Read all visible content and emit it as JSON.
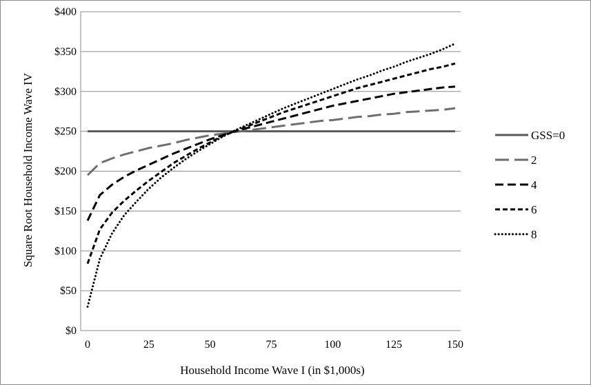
{
  "chart_data": {
    "type": "line",
    "title": "",
    "xlabel": "Household Income Wave I (in $1,000s)",
    "ylabel": "Square Root Household Income Wave IV",
    "xlim": [
      0,
      150
    ],
    "ylim": [
      0,
      400
    ],
    "x_ticks": [
      "0",
      "25",
      "50",
      "75",
      "100",
      "125",
      "150"
    ],
    "y_ticks": [
      "$0",
      "$50",
      "$100",
      "$150",
      "$200",
      "$250",
      "$300",
      "$350",
      "$400"
    ],
    "grid": "horizontal",
    "legend_position": "right",
    "x": [
      0,
      5,
      10,
      15,
      20,
      25,
      30,
      35,
      40,
      45,
      50,
      55,
      60,
      65,
      70,
      75,
      80,
      85,
      90,
      95,
      100,
      105,
      110,
      115,
      120,
      125,
      130,
      135,
      140,
      145,
      150
    ],
    "series": [
      {
        "name": "GSS=0",
        "style": "solid",
        "color": "#595959",
        "values": [
          250,
          250,
          250,
          250,
          250,
          250,
          250,
          250,
          250,
          250,
          250,
          250,
          250,
          250,
          250,
          250,
          250,
          250,
          250,
          250,
          250,
          250,
          250,
          250,
          250,
          250,
          250,
          250,
          250,
          250,
          250
        ]
      },
      {
        "name": "2",
        "style": "long-dash",
        "color": "#6e6e6e",
        "values": [
          195,
          210,
          216,
          221,
          225,
          229,
          232,
          235,
          239,
          242,
          245,
          247,
          249,
          251,
          253,
          255,
          257,
          259,
          261,
          263,
          264,
          266,
          268,
          269,
          271,
          272,
          274,
          275,
          276,
          277,
          279
        ]
      },
      {
        "name": "4",
        "style": "dash",
        "color": "#000000",
        "values": [
          138,
          170,
          183,
          193,
          201,
          208,
          215,
          222,
          228,
          234,
          240,
          245,
          250,
          254,
          258,
          262,
          266,
          270,
          274,
          278,
          282,
          285,
          288,
          291,
          294,
          297,
          299,
          301,
          303,
          305,
          306
        ]
      },
      {
        "name": "6",
        "style": "short-dash",
        "color": "#000000",
        "values": [
          84,
          127,
          148,
          163,
          176,
          188,
          199,
          210,
          219,
          228,
          236,
          244,
          250,
          256,
          262,
          268,
          274,
          279,
          284,
          289,
          294,
          299,
          304,
          308,
          312,
          316,
          320,
          324,
          328,
          331,
          335
        ]
      },
      {
        "name": "8",
        "style": "dotted",
        "color": "#000000",
        "values": [
          30,
          90,
          122,
          145,
          162,
          178,
          192,
          204,
          215,
          225,
          234,
          243,
          251,
          258,
          265,
          272,
          279,
          285,
          291,
          297,
          303,
          309,
          315,
          320,
          326,
          331,
          337,
          342,
          347,
          353,
          360
        ]
      }
    ]
  }
}
